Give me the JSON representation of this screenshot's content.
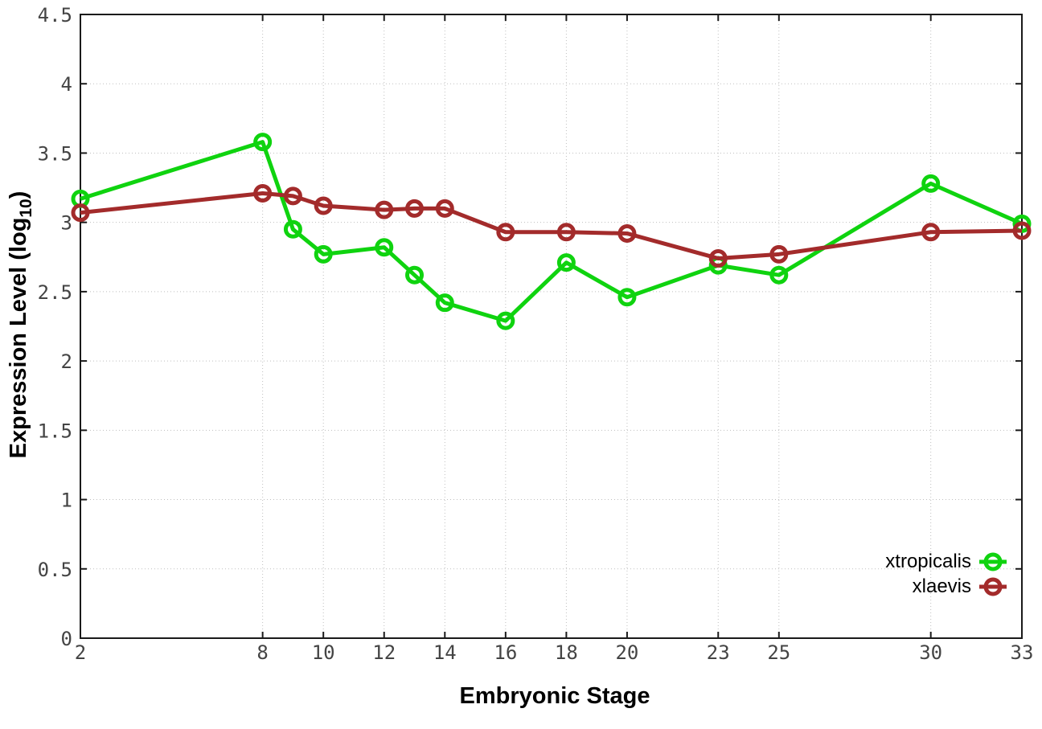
{
  "chart_data": {
    "type": "line",
    "title": "",
    "xlabel": "Embryonic Stage",
    "ylabel": "Expression Level (log10)",
    "x": [
      2,
      8,
      9,
      10,
      12,
      13,
      14,
      16,
      18,
      20,
      23,
      25,
      30,
      33
    ],
    "series": [
      {
        "name": "xtropicalis",
        "color": "#0fd30f",
        "marker": "open-circle",
        "values": [
          3.17,
          3.58,
          2.95,
          2.77,
          2.82,
          2.62,
          2.42,
          2.29,
          2.71,
          2.46,
          2.69,
          2.62,
          3.28,
          2.99
        ]
      },
      {
        "name": "xlaevis",
        "color": "#a32b2b",
        "marker": "open-circle",
        "values": [
          3.07,
          3.21,
          3.19,
          3.12,
          3.09,
          3.1,
          3.1,
          2.93,
          2.93,
          2.92,
          2.74,
          2.77,
          2.93,
          2.94
        ]
      }
    ],
    "xlim": [
      2,
      33
    ],
    "ylim": [
      0,
      4.5
    ],
    "xticks": {
      "values": [
        2,
        8,
        10,
        12,
        14,
        16,
        18,
        20,
        23,
        25,
        30,
        33
      ],
      "labels": [
        "2",
        "8",
        "10",
        "12",
        "14",
        "16",
        "18",
        "20",
        "23",
        "25",
        "30",
        "33"
      ]
    },
    "yticks": {
      "values": [
        0,
        0.5,
        1,
        1.5,
        2,
        2.5,
        3,
        3.5,
        4,
        4.5
      ],
      "labels": [
        "0",
        "0.5",
        "1",
        "1.5",
        "2",
        "2.5",
        "3",
        "3.5",
        "4",
        "4.5"
      ]
    },
    "grid": true,
    "legend_position": "bottom-right"
  },
  "labels": {
    "ylabel_prefix": "Expression Level (log",
    "ylabel_sub": "10",
    "ylabel_suffix": ")"
  },
  "colors": {
    "background": "#ffffff",
    "grid": "#bfbfbf",
    "border": "#1a1a1a",
    "tick_text": "#444444"
  }
}
